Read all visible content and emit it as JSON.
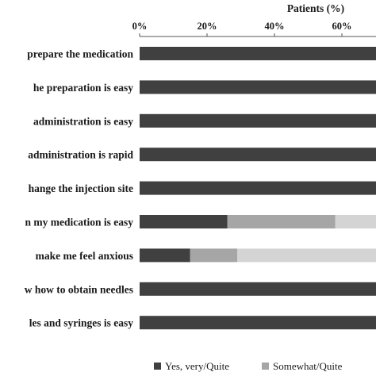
{
  "chart_data": {
    "type": "bar",
    "orientation": "horizontal",
    "stacked": true,
    "xlabel": "Patients (%)",
    "x_axis_position": "top",
    "xlim": [
      0,
      100
    ],
    "x_ticks": [
      "0%",
      "20%",
      "40%",
      "60%"
    ],
    "grid": false,
    "legend_position": "bottom",
    "categories": [
      "prepare the medication",
      "he preparation  is easy",
      "administration is easy",
      "administration is rapid",
      "hange the injection site",
      "n my medication is easy",
      "make me feel  anxious",
      "w how to obtain needles",
      "les and syringes is easy"
    ],
    "series": [
      {
        "name": "Yes, very/Quite",
        "color": "#404040",
        "values": [
          100,
          100,
          100,
          100,
          100,
          26,
          15,
          100,
          100
        ]
      },
      {
        "name": "Somewhat/Quite",
        "color": "#a6a6a6",
        "values": [
          0,
          0,
          0,
          0,
          0,
          32,
          14,
          0,
          0
        ]
      },
      {
        "name": "",
        "color": "#d4d4d4",
        "values": [
          0,
          0,
          0,
          0,
          0,
          42,
          71,
          0,
          0
        ]
      }
    ]
  }
}
